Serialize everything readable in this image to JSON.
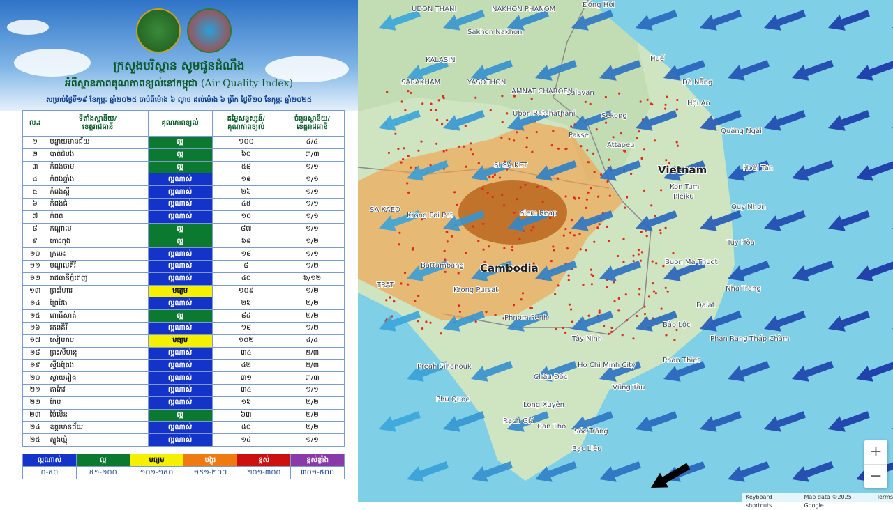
{
  "header": {
    "title": "ក្រសួងបរិស្ថាន សូមជូនដំណឹង",
    "subtitle_km": "អំពីស្ថានភាពគុណភាពខ្យល់នៅកម្ពុជា",
    "subtitle_en": "(Air Quality Index)",
    "date": "សម្រាប់ថ្ងៃទី១៩ ខែកុម្ភៈ ឆ្នាំ២០២៥ ចាប់ពីម៉ោង ៦ ល្ងាច ដល់ម៉ោង ៦ ព្រឹក ថ្ងៃទី២០ ខែកុម្ភៈ ឆ្នាំ២០២៥"
  },
  "table": {
    "headers": [
      [
        "ល.រ"
      ],
      [
        "ទីតាំងស្ថានីយ/",
        "ខេត្តរាជធានី"
      ],
      [
        "គុណភាពខ្យល់"
      ],
      [
        "តម្លៃសន្ទស្សន៍/",
        "គុណភាពខ្យល់"
      ],
      [
        "ចំនួនស្ថានីយ/",
        "ខេត្តរាជធានី"
      ]
    ],
    "rows": [
      [
        "១",
        "បន្ទាយមានជ័យ",
        "ល្អ",
        "១០០",
        "៤/៤"
      ],
      [
        "២",
        "បាត់ដំបង",
        "ល្អ",
        "៦០",
        "៣/៣"
      ],
      [
        "៣",
        "កំពង់ចាម",
        "ល្អ",
        "៥៨",
        "១/១"
      ],
      [
        "៤",
        "កំពង់ឆ្នាំង",
        "ល្អណាស់",
        "១៨",
        "១/១"
      ],
      [
        "៥",
        "កំពង់ស្ពឺ",
        "ល្អណាស់",
        "២៦",
        "១/១"
      ],
      [
        "៦",
        "កំពង់ធំ",
        "ល្អណាស់",
        "៤៥",
        "១/១"
      ],
      [
        "៧",
        "កំពត",
        "ល្អណាស់",
        "១០",
        "១/១"
      ],
      [
        "៨",
        "កណ្ដាល",
        "ល្អ",
        "៨៧",
        "១/១"
      ],
      [
        "៩",
        "កោះកុង",
        "ល្អ",
        "៦៩",
        "១/២"
      ],
      [
        "១០",
        "ក្រចេះ",
        "ល្អណាស់",
        "១៨",
        "១/១"
      ],
      [
        "១១",
        "មណ្ឌលគិរី",
        "ល្អណាស់",
        "៨",
        "១/២"
      ],
      [
        "១២",
        "រាជធានីភ្នំពេញ",
        "ល្អណាស់",
        "៤០",
        "៦/១២"
      ],
      [
        "១៣",
        "ព្រះវិហារ",
        "មធ្យម",
        "១០៩",
        "១/២"
      ],
      [
        "១៤",
        "ព្រៃវែង",
        "ល្អណាស់",
        "២៦",
        "២/២"
      ],
      [
        "១៥",
        "ពោធិ៍សាត់",
        "ល្អ",
        "៨៤",
        "២/២"
      ],
      [
        "១៦",
        "រតនគិរី",
        "ល្អណាស់",
        "១៨",
        "១/២"
      ],
      [
        "១៧",
        "សៀមរាប",
        "មធ្យម",
        "១០២",
        "៤/៤"
      ],
      [
        "១៨",
        "ព្រះសីហនុ",
        "ល្អណាស់",
        "៣៤",
        "២/៣"
      ],
      [
        "១៩",
        "ស្ទឹងត្រែង",
        "ល្អណាស់",
        "៤២",
        "២/៣"
      ],
      [
        "២០",
        "ស្វាយរៀង",
        "ល្អណាស់",
        "៣១",
        "៣/៣"
      ],
      [
        "២១",
        "តាកែវ",
        "ល្អណាស់",
        "៣៤",
        "១/១"
      ],
      [
        "២២",
        "កែប",
        "ល្អណាស់",
        "១៦",
        "២/២"
      ],
      [
        "២៣",
        "ប៉ៃលិន",
        "ល្អ",
        "៦៣",
        "២/២"
      ],
      [
        "២៤",
        "ឧត្តរមានជ័យ",
        "ល្អណាស់",
        "៥០",
        "២/២"
      ],
      [
        "២៥",
        "ត្បូងឃ្មុំ",
        "ល្អណាស់",
        "១៤",
        "១/១"
      ]
    ]
  },
  "legend": [
    {
      "label": "ល្អណាស់",
      "range": "០-៥០",
      "color": "#1433c8"
    },
    {
      "label": "ល្អ",
      "range": "៥១-១០០",
      "color": "#0b7a30"
    },
    {
      "label": "មធ្យម",
      "range": "១០១-១៥០",
      "color": "#f4f000"
    },
    {
      "label": "បង្គួរ",
      "range": "១៥១-២០០",
      "color": "#f07a12"
    },
    {
      "label": "ខ្ពស់",
      "range": "២០១-៣០០",
      "color": "#cc1010"
    },
    {
      "label": "ខ្ពស់ខ្លាំង",
      "range": "៣០១-៥០០",
      "color": "#8a3aa8"
    }
  ],
  "map": {
    "labels": [
      "UDON THANI",
      "Đồng Hới",
      "NAKHON PHANOM",
      "Sakhon Nakhon",
      "KALASIN",
      "SARAKHAM",
      "YASOTHON",
      "Huế",
      "Đà Nẵng",
      "Hội An",
      "Salavan",
      "AMNAT CHAROEN",
      "Ubon Ratchathani",
      "Sekong",
      "Pakse",
      "Attapeu",
      "Quảng Ngãi",
      "SI SA KET",
      "Vietnam",
      "Hoài Tân",
      "Kon Tum",
      "Pleiku",
      "Quy Nhơn",
      "Krong Poi Pet",
      "Siem Reap",
      "Cambodia",
      "Battambang",
      "Tuy Hòa",
      "Buon Ma Thuot",
      "Nha Trang",
      "Krong Pursat",
      "Phnom Penh",
      "Dalat",
      "Bảo Lộc",
      "Tây Ninh",
      "Phan Rang-Tháp Chàm",
      "Ho Chi Minh City",
      "Phan Thiet",
      "Preah Sihanouk",
      "Phu Quoc",
      "Châu Đốc",
      "Long Xuyên",
      "Vũng Tàu",
      "Can Tho",
      "Rạch Giá",
      "Sóc Trăng",
      "Bạc Liêu",
      "SA KAEO",
      "TRAT"
    ],
    "zoom_in": "+",
    "zoom_out": "−",
    "footer": [
      "Keyboard shortcuts",
      "Map data ©2025 Google",
      "Terms"
    ]
  }
}
